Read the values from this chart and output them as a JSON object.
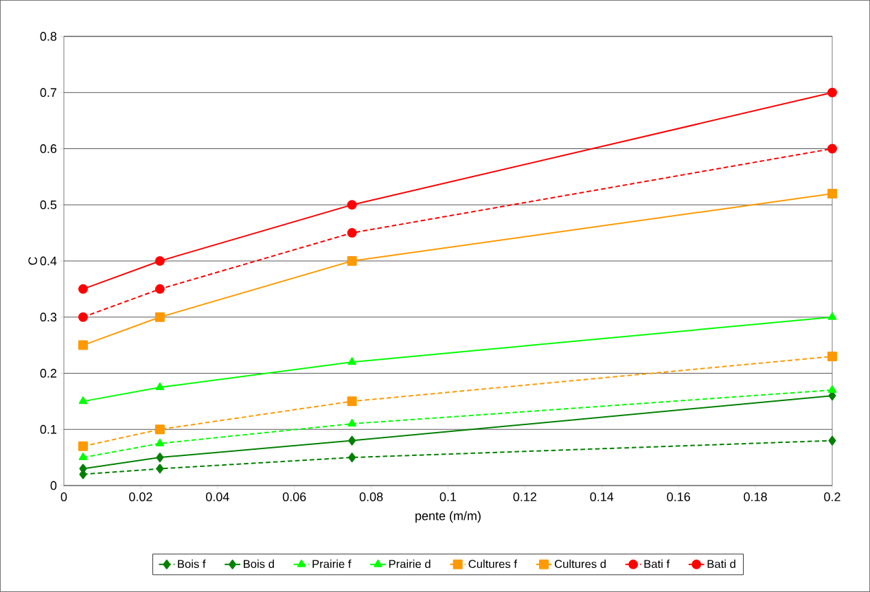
{
  "chart_data": {
    "type": "line",
    "xlabel": "pente (m/m)",
    "ylabel": "C",
    "x": [
      0.005,
      0.025,
      0.075,
      0.2
    ],
    "series": [
      {
        "name": "Bois f",
        "color": "#008000",
        "line_style": "dashed",
        "marker": "diamond",
        "values": [
          0.02,
          0.03,
          0.05,
          0.08
        ]
      },
      {
        "name": "Bois d",
        "color": "#008000",
        "line_style": "solid",
        "marker": "diamond",
        "values": [
          0.03,
          0.05,
          0.08,
          0.16
        ]
      },
      {
        "name": "Prairie f",
        "color": "#00ff00",
        "line_style": "dashed",
        "marker": "triangle",
        "values": [
          0.05,
          0.075,
          0.11,
          0.17
        ]
      },
      {
        "name": "Prairie d",
        "color": "#00ff00",
        "line_style": "solid",
        "marker": "triangle",
        "values": [
          0.15,
          0.175,
          0.22,
          0.3
        ]
      },
      {
        "name": "Cultures f",
        "color": "#ff9900",
        "line_style": "dashed",
        "marker": "square",
        "values": [
          0.07,
          0.1,
          0.15,
          0.23
        ]
      },
      {
        "name": "Cultures d",
        "color": "#ff9900",
        "line_style": "solid",
        "marker": "square",
        "values": [
          0.25,
          0.3,
          0.4,
          0.52
        ]
      },
      {
        "name": "Bati f",
        "color": "#ff0000",
        "line_style": "dashed",
        "marker": "circle",
        "values": [
          0.3,
          0.35,
          0.45,
          0.6
        ]
      },
      {
        "name": "Bati d",
        "color": "#ff0000",
        "line_style": "solid",
        "marker": "circle",
        "values": [
          0.35,
          0.4,
          0.5,
          0.7
        ]
      }
    ],
    "xlim": [
      0,
      0.2
    ],
    "xticks": [
      0,
      0.02,
      0.04,
      0.06,
      0.08,
      0.1,
      0.12,
      0.14,
      0.16,
      0.18,
      0.2
    ],
    "ylim": [
      0,
      0.8
    ],
    "yticks": [
      0,
      0.1,
      0.2,
      0.3,
      0.4,
      0.5,
      0.6,
      0.7,
      0.8
    ],
    "grid": "y",
    "legend": "bottom"
  }
}
